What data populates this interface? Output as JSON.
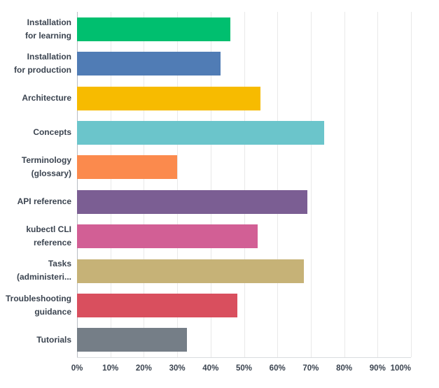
{
  "chart_data": {
    "type": "bar",
    "orientation": "horizontal",
    "title": "",
    "xlabel": "",
    "ylabel": "",
    "categories": [
      "Installation\nfor learning",
      "Installation\nfor production",
      "Architecture",
      "Concepts",
      "Terminology\n(glossary)",
      "API reference",
      "kubectl CLI\nreference",
      "Tasks\n(administeri...",
      "Troubleshooting\nguidance",
      "Tutorials"
    ],
    "values": [
      46,
      43,
      55,
      74,
      30,
      69,
      54,
      68,
      48,
      33
    ],
    "unit": "%",
    "bar_colors": [
      "#00BF6F",
      "#507CB5",
      "#F7BB00",
      "#6BC5CB",
      "#FB8A4D",
      "#7B5E93",
      "#D25F95",
      "#C6B277",
      "#D94F5E",
      "#757E87"
    ],
    "x_ticks": [
      "0%",
      "10%",
      "20%",
      "30%",
      "40%",
      "50%",
      "60%",
      "70%",
      "80%",
      "90%",
      "100%"
    ],
    "xlim": [
      0,
      100
    ],
    "grid": "vertical-gridlines-every-10-percent",
    "legend": "none"
  },
  "colors": {
    "background": "#ffffff",
    "gridline": "#e9e9e9",
    "zero_axis": "#b9bdc3",
    "bottom_axis": "#d9dcdf",
    "text": "#3b4450"
  }
}
